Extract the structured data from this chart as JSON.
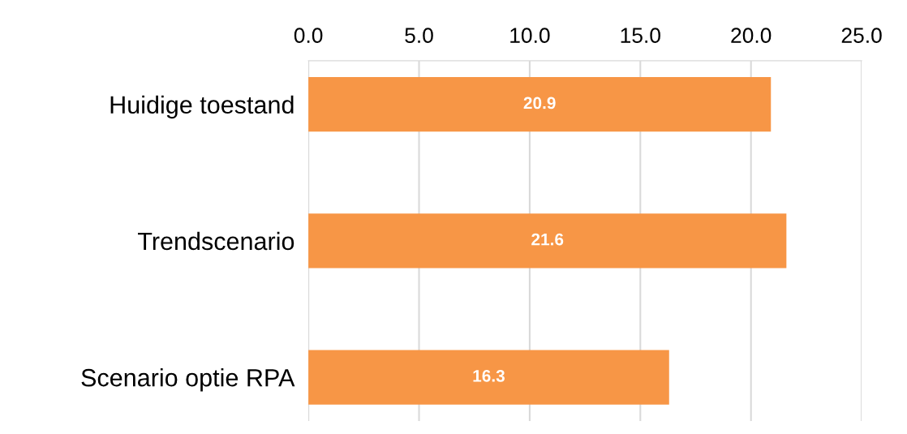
{
  "chart_data": {
    "type": "bar",
    "orientation": "horizontal",
    "categories": [
      "Huidige toestand",
      "Trendscenario",
      "Scenario optie RPA"
    ],
    "values": [
      20.9,
      21.6,
      16.3
    ],
    "color": "#f79646",
    "xlim": [
      0,
      25
    ],
    "xticks": [
      {
        "value": 0,
        "label": "0.0"
      },
      {
        "value": 5,
        "label": "5.0"
      },
      {
        "value": 10,
        "label": "10.0"
      },
      {
        "value": 15,
        "label": "15.0"
      },
      {
        "value": 20,
        "label": "20.0"
      },
      {
        "value": 25,
        "label": "25.0"
      }
    ],
    "grid": "x",
    "data_labels": true
  }
}
